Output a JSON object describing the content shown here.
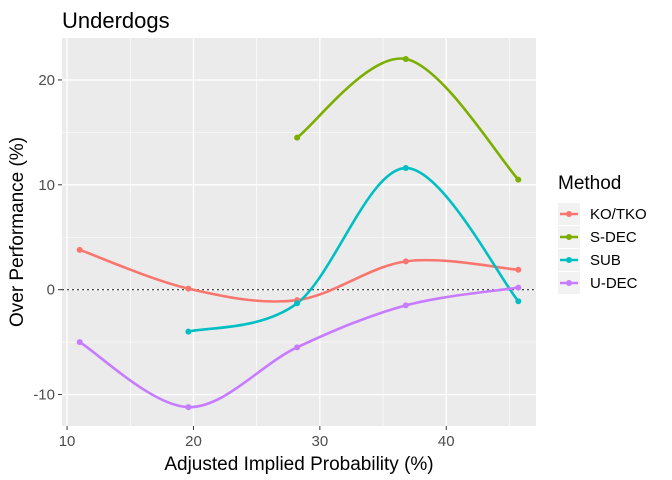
{
  "chart_data": {
    "type": "line",
    "title": "Underdogs",
    "xlabel": "Adjusted Implied Probability (%)",
    "ylabel": "Over Performance (%)",
    "xlim": [
      9.6,
      47.1
    ],
    "ylim": [
      -13,
      24
    ],
    "x_ticks": [
      10,
      20,
      30,
      40
    ],
    "y_ticks": [
      -10,
      0,
      10,
      20
    ],
    "x_tick_labels": [
      "10",
      "20",
      "30",
      "40"
    ],
    "y_tick_labels": [
      "-10",
      "0",
      "10",
      "20"
    ],
    "reference_line_y": 0,
    "grid": true,
    "legend": {
      "title": "Method",
      "position": "right"
    },
    "series": [
      {
        "name": "KO/TKO",
        "color": "#F8766D",
        "points": [
          [
            11.0,
            3.8
          ],
          [
            19.6,
            0.1
          ],
          [
            28.2,
            -1.0
          ],
          [
            36.8,
            2.7
          ],
          [
            45.7,
            1.9
          ]
        ]
      },
      {
        "name": "S-DEC",
        "color": "#7CAE00",
        "points": [
          [
            28.2,
            14.5
          ],
          [
            36.8,
            22.0
          ],
          [
            45.7,
            10.5
          ]
        ]
      },
      {
        "name": "SUB",
        "color": "#00BFC4",
        "points": [
          [
            19.6,
            -4.0
          ],
          [
            28.2,
            -1.3
          ],
          [
            36.8,
            11.6
          ],
          [
            45.7,
            -1.1
          ]
        ]
      },
      {
        "name": "U-DEC",
        "color": "#C77CFF",
        "points": [
          [
            11.0,
            -5.0
          ],
          [
            19.6,
            -11.2
          ],
          [
            28.2,
            -5.5
          ],
          [
            36.8,
            -1.5
          ],
          [
            45.7,
            0.2
          ]
        ]
      }
    ]
  }
}
